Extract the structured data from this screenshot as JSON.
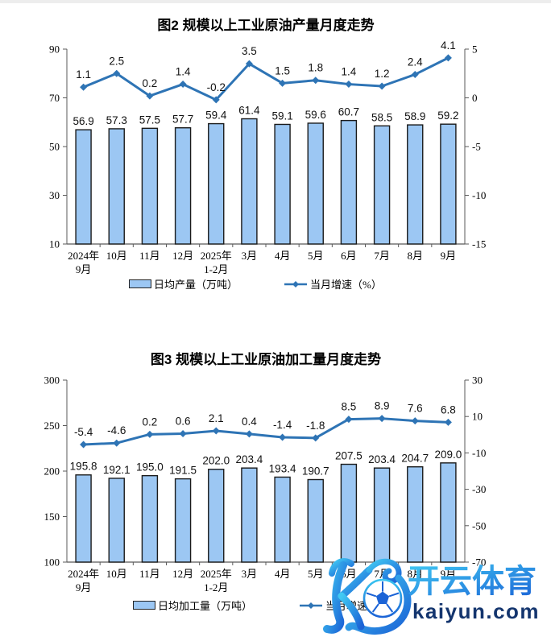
{
  "chart_data": [
    {
      "type": "bar+line",
      "title": "图2  规模以上工业原油产量月度走势",
      "categories": [
        "2024年\n9月",
        "10月",
        "11月",
        "12月",
        "2025年\n1-2月",
        "3月",
        "4月",
        "5月",
        "6月",
        "7月",
        "8月",
        "9月"
      ],
      "bar": {
        "name": "日均产量（万吨）",
        "values": [
          56.9,
          57.3,
          57.5,
          57.7,
          59.4,
          61.4,
          59.1,
          59.6,
          60.7,
          58.5,
          58.9,
          59.2
        ]
      },
      "line": {
        "name": "当月增速（%）",
        "values": [
          1.1,
          2.5,
          0.2,
          1.4,
          -0.2,
          3.5,
          1.5,
          1.8,
          1.4,
          1.2,
          2.4,
          4.1
        ]
      },
      "left_axis": {
        "min": 10,
        "max": 90,
        "ticks": [
          90,
          70,
          50,
          30,
          10
        ]
      },
      "right_axis": {
        "min": -15,
        "max": 5,
        "ticks": [
          5,
          0,
          -5,
          -10,
          -15
        ]
      },
      "legend_position": "bottom",
      "grid": false
    },
    {
      "type": "bar+line",
      "title": "图3  规模以上工业原油加工量月度走势",
      "categories": [
        "2024年\n9月",
        "10月",
        "11月",
        "12月",
        "2025年\n1-2月",
        "3月",
        "4月",
        "5月",
        "6月",
        "7月",
        "8月",
        "9月"
      ],
      "bar": {
        "name": "日均加工量（万吨）",
        "values": [
          195.8,
          192.1,
          195.0,
          191.5,
          202.0,
          203.4,
          193.4,
          190.7,
          207.5,
          203.4,
          204.7,
          209.0
        ]
      },
      "line": {
        "name": "当月增速（%）",
        "values": [
          -5.4,
          -4.6,
          0.2,
          0.6,
          2.1,
          0.4,
          -1.4,
          -1.8,
          8.5,
          8.9,
          7.6,
          6.8
        ]
      },
      "left_axis": {
        "min": 100,
        "max": 300,
        "ticks": [
          300,
          250,
          200,
          150,
          100
        ]
      },
      "right_axis": {
        "min": -70,
        "max": 30,
        "ticks": [
          30,
          10,
          -10,
          -30,
          -50,
          -70
        ]
      },
      "legend_position": "bottom",
      "grid": false
    }
  ],
  "colors": {
    "bar_fill": "#9CC7F3",
    "bar_border": "#1a1a1a",
    "line": "#2E74B5",
    "axis": "#595959",
    "text": "#000000",
    "watermark_gradient_start": "#41C9F3",
    "watermark_gradient_end": "#1B63D6",
    "watermark_domain": "#14356E"
  },
  "watermark": {
    "logo": "kaiyun-k-soccer-ball-logo",
    "brand": "开云体育",
    "domain": "kaiyun.com"
  }
}
